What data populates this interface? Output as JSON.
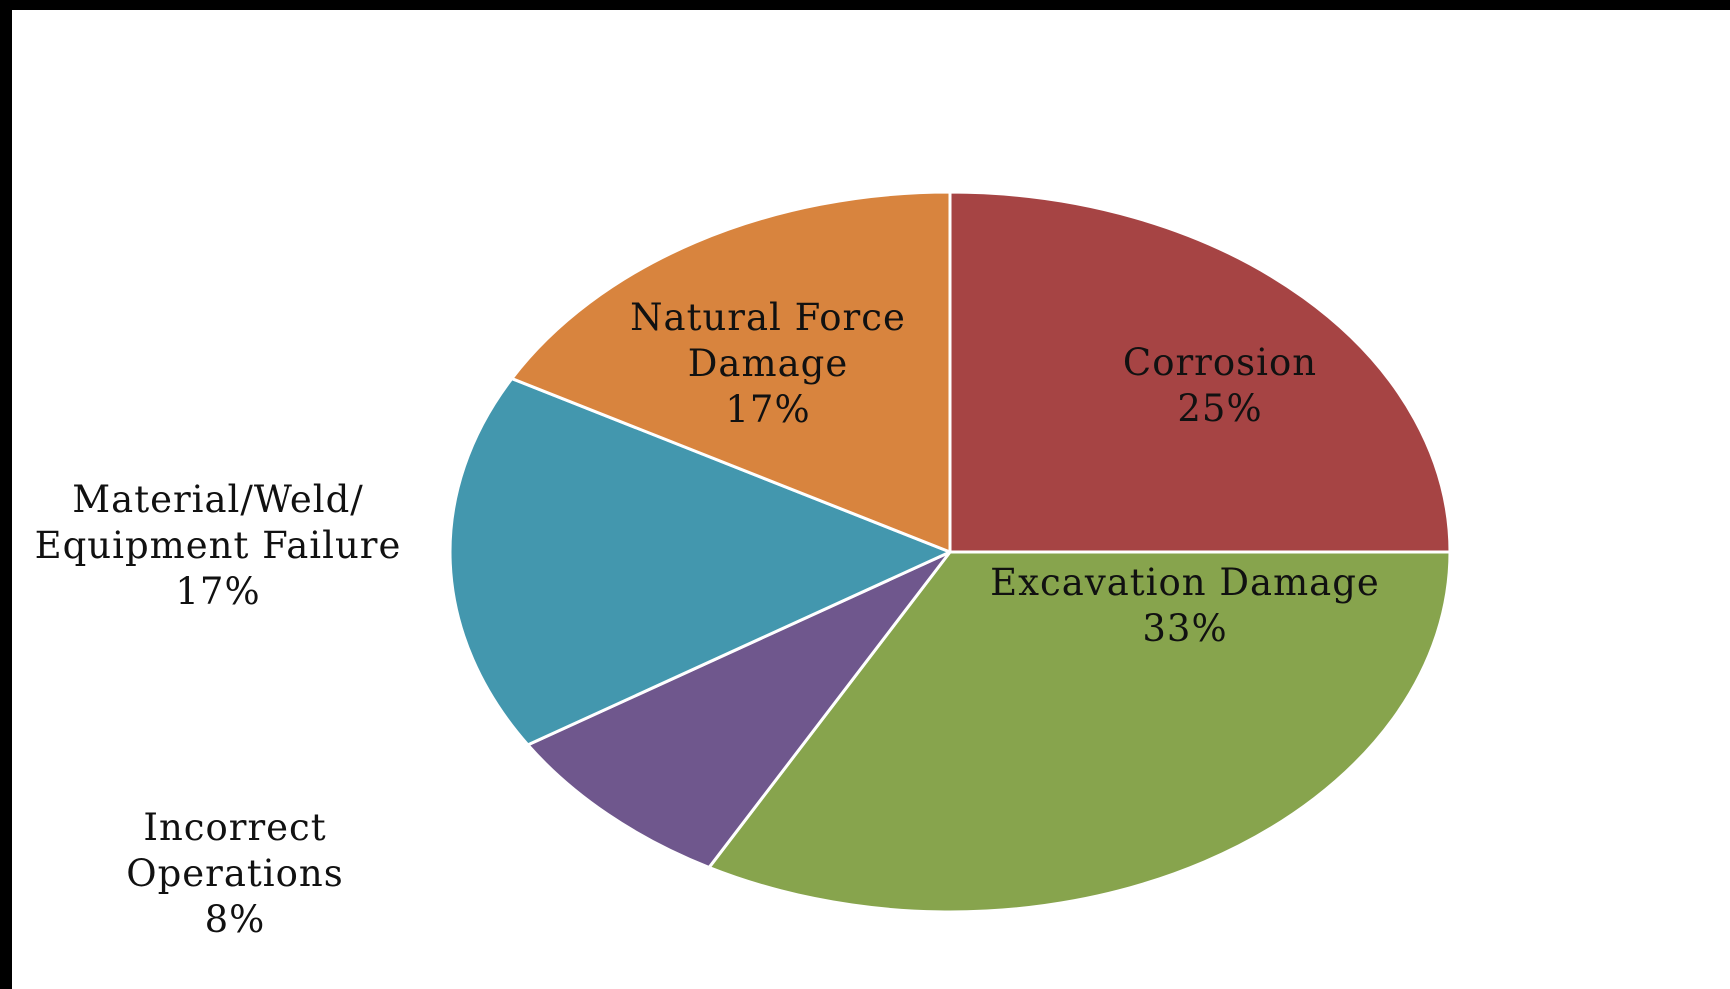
{
  "chart_data": {
    "type": "pie",
    "start_angle": "12 o'clock",
    "direction": "clockwise",
    "slices": [
      {
        "name": "Corrosion",
        "label": [
          "Corrosion"
        ],
        "value": 25,
        "value_label": "25%",
        "color": "#A64444"
      },
      {
        "name": "Excavation Damage",
        "label": [
          "Excavation Damage"
        ],
        "value": 33,
        "value_label": "33%",
        "color": "#87A44D"
      },
      {
        "name": "Incorrect Operations",
        "label": [
          "Incorrect",
          "Operations"
        ],
        "value": 8,
        "value_label": "8%",
        "color": "#6F578D"
      },
      {
        "name": "Material/Weld/Equipment Failure",
        "label": [
          "Material/Weld/",
          "Equipment Failure"
        ],
        "value": 17,
        "value_label": "17%",
        "color": "#4397AE"
      },
      {
        "name": "Natural Force Damage",
        "label": [
          "Natural Force",
          "Damage"
        ],
        "value": 17,
        "value_label": "17%",
        "color": "#D8843E"
      }
    ],
    "legend": "none"
  }
}
